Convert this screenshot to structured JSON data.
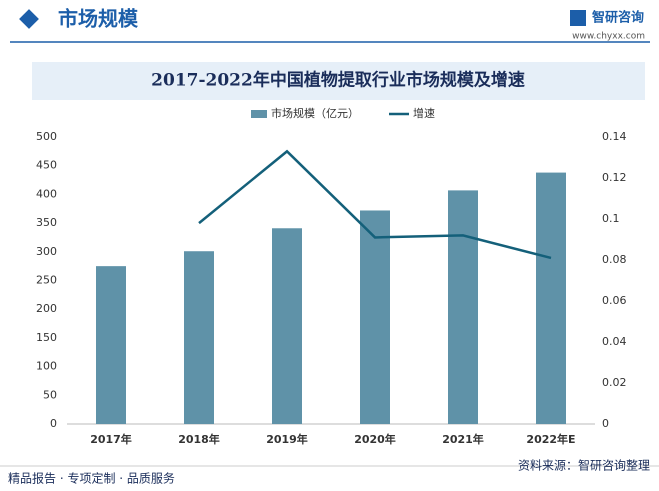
{
  "header": {
    "title": "市场规模",
    "brand": "智研咨询",
    "url": "www.chyxx.com"
  },
  "footer": {
    "slogan": "精品报告 · 专项定制 · 品质服务",
    "source": "资料来源：智研咨询整理"
  },
  "chart_data": {
    "type": "bar",
    "title": "2017-2022年中国植物提取行业市场规模及增速",
    "categories": [
      "2017年",
      "2018年",
      "2019年",
      "2020年",
      "2021年",
      "2022年E"
    ],
    "series": [
      {
        "name": "市场规模（亿元）",
        "color": "#5f92a8",
        "type": "bar",
        "values": [
          275,
          301,
          341,
          372,
          407,
          438
        ]
      },
      {
        "name": "增速",
        "color": "#14607a",
        "type": "line",
        "axis": "y2",
        "values": [
          null,
          0.098,
          0.133,
          0.091,
          0.092,
          0.081
        ]
      }
    ],
    "ylim": [
      0,
      500
    ],
    "yticks": [
      0,
      50,
      100,
      150,
      200,
      250,
      300,
      350,
      400,
      450,
      500
    ],
    "y2lim": [
      0,
      0.14
    ],
    "y2ticks": [
      0,
      0.02,
      0.04,
      0.06,
      0.08,
      0.1,
      0.12,
      0.14
    ],
    "grid": false,
    "legend": "top"
  }
}
